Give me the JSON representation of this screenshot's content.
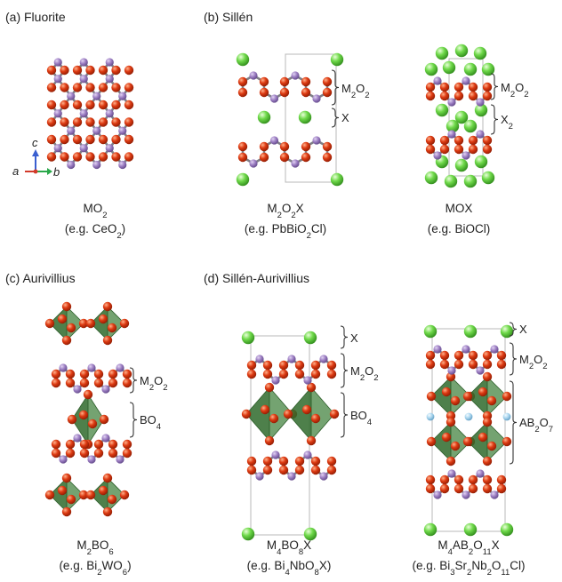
{
  "panels": {
    "a": {
      "title": "(a) Fluorite",
      "formula": [
        "MO",
        [
          "2"
        ]
      ],
      "example": [
        "(e.g. CeO",
        [
          "2"
        ],
        ")"
      ],
      "axes": {
        "c": "c",
        "a": "a",
        "b": "b"
      }
    },
    "b1": {
      "title": "(b) Sillén",
      "formula": [
        "M",
        [
          "2"
        ],
        "O",
        [
          "2"
        ],
        "X"
      ],
      "example": [
        "(e.g. PbBiO",
        [
          "2"
        ],
        "Cl)"
      ],
      "labels": [
        [
          "M",
          [
            "2"
          ],
          "O",
          [
            "2"
          ]
        ],
        [
          "X"
        ]
      ]
    },
    "b2": {
      "formula": [
        "MOX"
      ],
      "example": [
        "(e.g. BiOCl)"
      ],
      "labels": [
        [
          "M",
          [
            "2"
          ],
          "O",
          [
            "2"
          ]
        ],
        [
          "X",
          [
            "2"
          ]
        ]
      ]
    },
    "c": {
      "title": "(c) Aurivillius",
      "formula": [
        "M",
        [
          "2"
        ],
        "BO",
        [
          "6"
        ]
      ],
      "example": [
        "(e.g. Bi",
        [
          "2"
        ],
        "WO",
        [
          "6"
        ],
        ")"
      ],
      "labels": [
        [
          "M",
          [
            "2"
          ],
          "O",
          [
            "2"
          ]
        ],
        [
          "BO",
          [
            "4"
          ]
        ]
      ]
    },
    "d1": {
      "title": "(d) Sillén-Aurivillius",
      "formula": [
        "M",
        [
          "4"
        ],
        "BO",
        [
          "8"
        ],
        "X"
      ],
      "example": [
        "(e.g. Bi",
        [
          "4"
        ],
        "NbO",
        [
          "8"
        ],
        "X)"
      ],
      "labels": [
        [
          "X"
        ],
        [
          "M",
          [
            "2"
          ],
          "O",
          [
            "2"
          ]
        ],
        [
          "BO",
          [
            "4"
          ]
        ]
      ]
    },
    "d2": {
      "formula": [
        "M",
        [
          "4"
        ],
        "AB",
        [
          "2"
        ],
        "O",
        [
          "11"
        ],
        "X"
      ],
      "example": [
        "(e.g. Bi",
        [
          "3"
        ],
        "Sr",
        [
          "2"
        ],
        "Nb",
        [
          "2"
        ],
        "O",
        [
          "11"
        ],
        "Cl)"
      ],
      "labels": [
        [
          "X"
        ],
        [
          "M",
          [
            "2"
          ],
          "O",
          [
            "2"
          ]
        ],
        [
          "AB",
          [
            "2"
          ],
          "O",
          [
            "7"
          ]
        ]
      ]
    }
  },
  "colors": {
    "M_atom": "#9a7cc1",
    "O_atom": "#dd3a12",
    "X_atom": "#6fd94a",
    "A_atom": "#a9d5ee",
    "bond": "#7f7f86",
    "octahedron": "#3e7f3a",
    "axis_c": "#3a5fd0",
    "axis_b": "#2aa84a",
    "axis_a": "#d23a2a"
  }
}
